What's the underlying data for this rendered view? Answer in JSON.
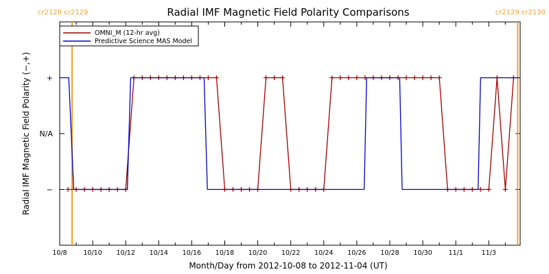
{
  "chart_data": {
    "type": "line",
    "title": "Radial IMF Magnetic Field Polarity Comparisons",
    "xlabel": "Month/Day from 2012-10-08 to 2012-11-04 (UT)",
    "ylabel": "Radial IMF Magnetic Field Polarity (−,+)",
    "x_tick_labels": [
      "10/8",
      "10/10",
      "10/12",
      "10/14",
      "10/16",
      "10/18",
      "10/20",
      "10/22",
      "10/24",
      "10/26",
      "10/28",
      "10/30",
      "11/1",
      "11/3"
    ],
    "x_tick_days": [
      0,
      2,
      4,
      6,
      8,
      10,
      12,
      14,
      16,
      18,
      20,
      22,
      24,
      26
    ],
    "xlim": [
      0,
      27.9
    ],
    "y_ticks": [
      {
        "label": "+",
        "value": 1
      },
      {
        "label": "N/A",
        "value": 0
      },
      {
        "label": "−",
        "value": -1
      }
    ],
    "ylim": [
      -2,
      2
    ],
    "carrington_markers": [
      {
        "label": "cr2128 cr2129",
        "day": 0.75
      },
      {
        "label": "cr2129 cr2130",
        "day": 27.75
      }
    ],
    "marker_color": "#f0a030",
    "legend": {
      "placement": "top-left",
      "entries": [
        {
          "label": "OMNI_M (12-hr avg)",
          "color": "#a00000"
        },
        {
          "label": "Predictive Science MAS Model",
          "color": "#0000c0"
        }
      ]
    },
    "series": [
      {
        "name": "OMNI_M (12-hr avg)",
        "color": "#a00000",
        "marker": "+",
        "points": [
          [
            0.5,
            -1
          ],
          [
            1.0,
            -1
          ],
          [
            1.5,
            -1
          ],
          [
            2.0,
            -1
          ],
          [
            2.5,
            -1
          ],
          [
            3.0,
            -1
          ],
          [
            3.5,
            -1
          ],
          [
            4.0,
            -1
          ],
          [
            4.5,
            1
          ],
          [
            5.0,
            1
          ],
          [
            5.5,
            1
          ],
          [
            6.0,
            1
          ],
          [
            6.5,
            1
          ],
          [
            7.0,
            1
          ],
          [
            7.5,
            1
          ],
          [
            8.0,
            1
          ],
          [
            8.5,
            1
          ],
          [
            9.0,
            1
          ],
          [
            9.5,
            1
          ],
          [
            10.0,
            -1
          ],
          [
            10.5,
            -1
          ],
          [
            11.0,
            -1
          ],
          [
            11.5,
            -1
          ],
          [
            12.0,
            -1
          ],
          [
            12.5,
            1
          ],
          [
            13.0,
            1
          ],
          [
            13.5,
            1
          ],
          [
            14.0,
            -1
          ],
          [
            14.5,
            -1
          ],
          [
            15.0,
            -1
          ],
          [
            15.5,
            -1
          ],
          [
            16.0,
            -1
          ],
          [
            16.5,
            1
          ],
          [
            17.0,
            1
          ],
          [
            17.5,
            1
          ],
          [
            18.0,
            1
          ],
          [
            18.5,
            1
          ],
          [
            19.0,
            1
          ],
          [
            19.5,
            1
          ],
          [
            20.0,
            1
          ],
          [
            20.5,
            1
          ],
          [
            21.0,
            1
          ],
          [
            21.5,
            1
          ],
          [
            22.0,
            1
          ],
          [
            22.5,
            1
          ],
          [
            23.0,
            1
          ],
          [
            23.5,
            -1
          ],
          [
            24.0,
            -1
          ],
          [
            24.5,
            -1
          ],
          [
            25.0,
            -1
          ],
          [
            25.5,
            -1
          ],
          [
            26.0,
            -1
          ],
          [
            26.5,
            1
          ],
          [
            27.0,
            -1
          ],
          [
            27.5,
            1
          ]
        ]
      },
      {
        "name": "Predictive Science MAS Model",
        "color": "#0000c0",
        "points": [
          [
            0,
            1
          ],
          [
            0.55,
            1
          ],
          [
            0.85,
            -1
          ],
          [
            4.1,
            -1
          ],
          [
            4.3,
            1
          ],
          [
            8.75,
            1
          ],
          [
            8.95,
            -1
          ],
          [
            18.45,
            -1
          ],
          [
            18.6,
            1
          ],
          [
            20.6,
            1
          ],
          [
            20.75,
            -1
          ],
          [
            25.35,
            -1
          ],
          [
            25.5,
            1
          ],
          [
            27.9,
            1
          ]
        ]
      }
    ]
  }
}
